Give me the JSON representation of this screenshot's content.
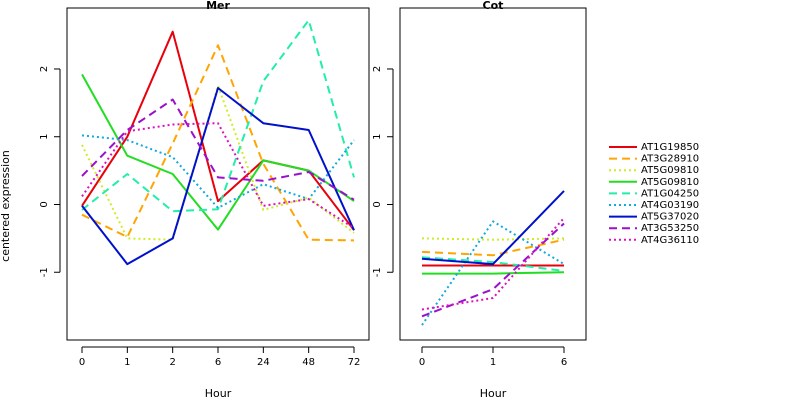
{
  "chart_data": {
    "type": "line",
    "ylabel": "centered expression",
    "legend_position": "right",
    "ylim": [
      -2.0,
      2.9
    ],
    "yticks": [
      -1,
      0,
      1,
      2
    ],
    "series_styles": [
      {
        "name": "AT1G19850",
        "color": "#e8000b",
        "dash": "solid"
      },
      {
        "name": "AT3G28910",
        "color": "#ffa500",
        "dash": "dashed"
      },
      {
        "name": "AT5G09810",
        "color": "#ccee22",
        "dash": "dotted"
      },
      {
        "name": "AT5G09810",
        "color": "#22dd22",
        "dash": "solid"
      },
      {
        "name": "AT1G04250",
        "color": "#22eeaa",
        "dash": "dashed"
      },
      {
        "name": "AT4G03190",
        "color": "#11aadd",
        "dash": "dotted"
      },
      {
        "name": "AT5G37020",
        "color": "#0011cc",
        "dash": "solid"
      },
      {
        "name": "AT3G53250",
        "color": "#9911cc",
        "dash": "dashed"
      },
      {
        "name": "AT4G36110",
        "color": "#dd11bb",
        "dash": "dotted"
      }
    ],
    "panels": [
      {
        "title": "Mer",
        "xlabel": "Hour",
        "categories": [
          "0",
          "1",
          "2",
          "6",
          "24",
          "48",
          "72"
        ],
        "series": [
          {
            "values": [
              -0.02,
              1.0,
              2.55,
              0.05,
              0.65,
              0.5,
              -0.38
            ]
          },
          {
            "values": [
              -0.15,
              -0.48,
              0.9,
              2.35,
              0.6,
              -0.52,
              -0.53
            ]
          },
          {
            "values": [
              0.88,
              -0.5,
              -0.52,
              1.75,
              -0.08,
              0.1,
              -0.42
            ]
          },
          {
            "values": [
              1.92,
              0.72,
              0.45,
              -0.37,
              0.65,
              0.5,
              0.05
            ]
          },
          {
            "values": [
              -0.08,
              0.45,
              -0.1,
              -0.07,
              1.82,
              2.72,
              0.4
            ]
          },
          {
            "values": [
              1.02,
              0.95,
              0.7,
              -0.05,
              0.3,
              0.08,
              0.95
            ]
          },
          {
            "values": [
              -0.02,
              -0.88,
              -0.5,
              1.72,
              1.2,
              1.1,
              -0.38
            ]
          },
          {
            "values": [
              0.42,
              1.1,
              1.55,
              0.4,
              0.35,
              0.48,
              0.07
            ]
          },
          {
            "values": [
              0.12,
              1.08,
              1.18,
              1.2,
              -0.02,
              0.08,
              -0.35
            ]
          }
        ]
      },
      {
        "title": "Cot",
        "xlabel": "Hour",
        "categories": [
          "0",
          "1",
          "6"
        ],
        "series": [
          {
            "values": [
              -0.9,
              -0.9,
              -0.9
            ]
          },
          {
            "values": [
              -0.7,
              -0.75,
              -0.52
            ]
          },
          {
            "values": [
              -0.5,
              -0.52,
              -0.5
            ]
          },
          {
            "values": [
              -1.02,
              -1.02,
              -1.0
            ]
          },
          {
            "values": [
              -0.78,
              -0.85,
              -0.98
            ]
          },
          {
            "values": [
              -1.78,
              -0.25,
              -0.88
            ]
          },
          {
            "values": [
              -0.8,
              -0.88,
              0.2
            ]
          },
          {
            "values": [
              -1.65,
              -1.25,
              -0.28
            ]
          },
          {
            "values": [
              -1.55,
              -1.38,
              -0.2
            ]
          }
        ]
      }
    ]
  }
}
